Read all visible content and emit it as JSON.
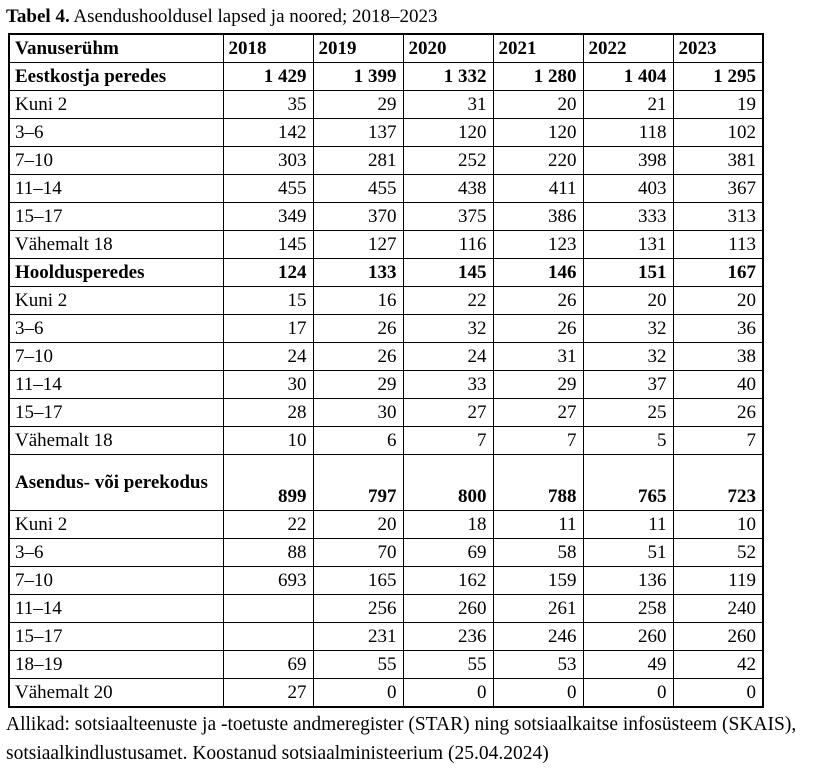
{
  "title": {
    "label": "Tabel 4.",
    "text": " Asendushooldusel lapsed ja noored; 2018–2023"
  },
  "table": {
    "header": [
      "Vanuserühm",
      "2018",
      "2019",
      "2020",
      "2021",
      "2022",
      "2023"
    ],
    "rows": [
      {
        "label": "Eestkostja peredes",
        "bold": true,
        "tall": false,
        "values": [
          "1 429",
          "1 399",
          "1 332",
          "1 280",
          "1 404",
          "1 295"
        ]
      },
      {
        "label": "Kuni 2",
        "bold": false,
        "tall": false,
        "values": [
          "35",
          "29",
          "31",
          "20",
          "21",
          "19"
        ]
      },
      {
        "label": "3–6",
        "bold": false,
        "tall": false,
        "values": [
          "142",
          "137",
          "120",
          "120",
          "118",
          "102"
        ]
      },
      {
        "label": "7–10",
        "bold": false,
        "tall": false,
        "values": [
          "303",
          "281",
          "252",
          "220",
          "398",
          "381"
        ]
      },
      {
        "label": "11–14",
        "bold": false,
        "tall": false,
        "values": [
          "455",
          "455",
          "438",
          "411",
          "403",
          "367"
        ]
      },
      {
        "label": "15–17",
        "bold": false,
        "tall": false,
        "values": [
          "349",
          "370",
          "375",
          "386",
          "333",
          "313"
        ]
      },
      {
        "label": "Vähemalt 18",
        "bold": false,
        "tall": false,
        "values": [
          "145",
          "127",
          "116",
          "123",
          "131",
          "113"
        ]
      },
      {
        "label": "Hooldusperedes",
        "bold": true,
        "tall": false,
        "values": [
          "124",
          "133",
          "145",
          "146",
          "151",
          "167"
        ]
      },
      {
        "label": "Kuni 2",
        "bold": false,
        "tall": false,
        "values": [
          "15",
          "16",
          "22",
          "26",
          "20",
          "20"
        ]
      },
      {
        "label": "3–6",
        "bold": false,
        "tall": false,
        "values": [
          "17",
          "26",
          "32",
          "26",
          "32",
          "36"
        ]
      },
      {
        "label": "7–10",
        "bold": false,
        "tall": false,
        "values": [
          "24",
          "26",
          "24",
          "31",
          "32",
          "38"
        ]
      },
      {
        "label": "11–14",
        "bold": false,
        "tall": false,
        "values": [
          "30",
          "29",
          "33",
          "29",
          "37",
          "40"
        ]
      },
      {
        "label": "15–17",
        "bold": false,
        "tall": false,
        "values": [
          "28",
          "30",
          "27",
          "27",
          "25",
          "26"
        ]
      },
      {
        "label": "Vähemalt 18",
        "bold": false,
        "tall": false,
        "values": [
          "10",
          "6",
          "7",
          "7",
          "5",
          "7"
        ]
      },
      {
        "label": "Asendus- või perekodus",
        "bold": true,
        "tall": true,
        "values": [
          "899",
          "797",
          "800",
          "788",
          "765",
          "723"
        ]
      },
      {
        "label": "Kuni 2",
        "bold": false,
        "tall": false,
        "values": [
          "22",
          "20",
          "18",
          "11",
          "11",
          "10"
        ]
      },
      {
        "label": "3–6",
        "bold": false,
        "tall": false,
        "values": [
          "88",
          "70",
          "69",
          "58",
          "51",
          "52"
        ]
      },
      {
        "label": "7–10",
        "bold": false,
        "tall": false,
        "values": [
          "693",
          "165",
          "162",
          "159",
          "136",
          "119"
        ]
      },
      {
        "label": "11–14",
        "bold": false,
        "tall": false,
        "values": [
          "",
          "256",
          "260",
          "261",
          "258",
          "240"
        ]
      },
      {
        "label": "15–17",
        "bold": false,
        "tall": false,
        "values": [
          "",
          "231",
          "236",
          "246",
          "260",
          "260"
        ]
      },
      {
        "label": "18–19",
        "bold": false,
        "tall": false,
        "values": [
          "69",
          "55",
          "55",
          "53",
          "49",
          "42"
        ]
      },
      {
        "label": "Vähemalt 20",
        "bold": false,
        "tall": false,
        "values": [
          "27",
          "0",
          "0",
          "0",
          "0",
          "0"
        ]
      }
    ]
  },
  "footer": {
    "source_note": "Allikad: sotsiaalteenuste ja -toetuste andmeregister (STAR) ning sotsiaalkaitse infosüsteem (SKAIS), sotsiaalkindlustusamet. Koostanud sotsiaalministeerium (25.04.2024)"
  }
}
